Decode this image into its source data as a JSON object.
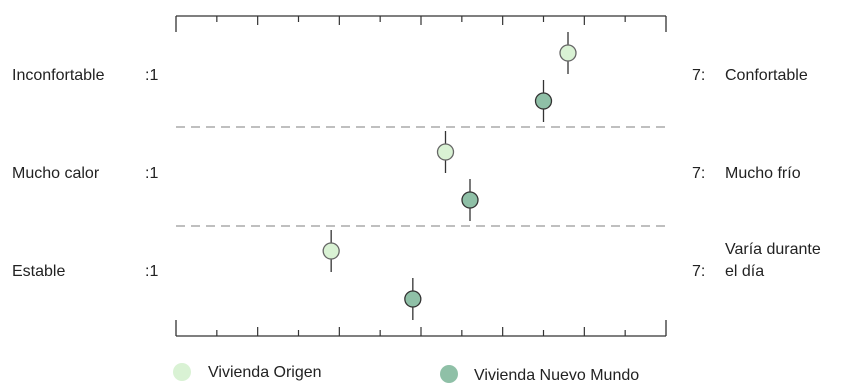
{
  "chart_data": {
    "type": "scatter",
    "scale": {
      "min": 1,
      "max": 7
    },
    "rows": [
      {
        "left_label": "Inconfortable",
        "left_value_label": ":1",
        "right_value_label": "7:",
        "right_label_lines": [
          "Confortable"
        ]
      },
      {
        "left_label": "Mucho calor",
        "left_value_label": ":1",
        "right_value_label": "7:",
        "right_label_lines": [
          "Mucho frío"
        ]
      },
      {
        "left_label": "Estable",
        "left_value_label": ":1",
        "right_value_label": "7:",
        "right_label_lines": [
          "Varía durante",
          "el día"
        ]
      }
    ],
    "series": [
      {
        "name": "Vivienda Origen",
        "color": "#d9f2d4",
        "values": [
          5.8,
          4.3,
          2.9
        ],
        "errors": [
          0.2,
          0.2,
          0.2
        ]
      },
      {
        "name": "Vivienda Nuevo Mundo",
        "color": "#8fc0a7",
        "values": [
          5.5,
          4.6,
          3.9
        ],
        "errors": [
          0.2,
          0.2,
          0.2
        ]
      }
    ]
  }
}
